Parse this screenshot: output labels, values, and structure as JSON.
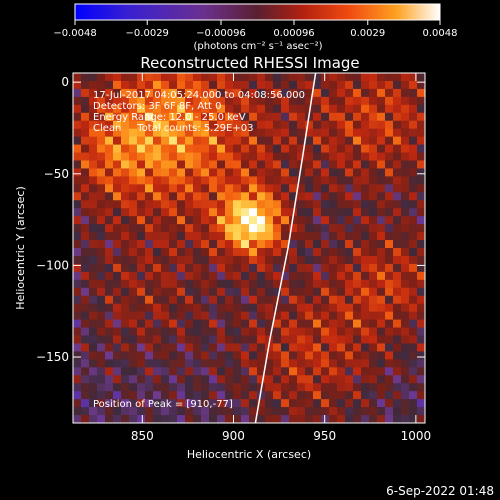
{
  "chart_data": {
    "type": "heatmap",
    "title": "Reconstructed RHESSI Image",
    "xlabel": "Heliocentric X (arcsec)",
    "ylabel": "Heliocentric Y (arcsec)",
    "xlim": [
      812,
      1005
    ],
    "ylim": [
      -186,
      5
    ],
    "x_ticks": [
      850,
      900,
      950,
      1000
    ],
    "y_ticks": [
      0,
      -50,
      -100,
      -150
    ],
    "colorbar": {
      "range": [
        -0.0048,
        0.0048
      ],
      "tick_values": [
        -0.0048,
        -0.0029,
        -0.00096,
        0.00096,
        0.0029,
        0.0048
      ],
      "tick_labels": [
        "−0.0048",
        "−0.0029",
        "−0.00096",
        "0.00096",
        "0.0029",
        "0.0048"
      ],
      "unit_label": "(photons cm⁻² s⁻¹ asec⁻²)"
    },
    "annotations": [
      "17-Jul-2017 04:05:24.000 to 04:08:56.000",
      "Detectors: 3F 6F 8F, Att 0",
      "Energy Range: 12.0 - 25.0 keV",
      "Clean     Total counts: 5.29E+03"
    ],
    "peak": {
      "x": 910,
      "y": -77,
      "label": "Position of Peak = [910,-77]"
    },
    "limb": [
      [
        945,
        5
      ],
      [
        938,
        -40
      ],
      [
        930,
        -90
      ],
      [
        920,
        -140
      ],
      [
        912,
        -186
      ]
    ],
    "emission_blobs": [
      {
        "x": 910,
        "y": -77,
        "sigma": 12,
        "value": 0.0048
      },
      {
        "x": 880,
        "y": -35,
        "sigma": 40,
        "value": 0.0022
      },
      {
        "x": 860,
        "y": -20,
        "sigma": 25,
        "value": 0.0018
      },
      {
        "x": 980,
        "y": -20,
        "sigma": 28,
        "value": 0.0022
      },
      {
        "x": 985,
        "y": -110,
        "sigma": 22,
        "value": 0.002
      },
      {
        "x": 940,
        "y": -150,
        "sigma": 28,
        "value": 0.002
      },
      {
        "x": 850,
        "y": -120,
        "sigma": 25,
        "value": 0.0012
      },
      {
        "x": 830,
        "y": -40,
        "sigma": 20,
        "value": 0.0015
      }
    ],
    "colors": {
      "scale": [
        "#0000ff",
        "#2a1fd6",
        "#552fb0",
        "#6e3a8c",
        "#3e2a3c",
        "#7a2018",
        "#c02810",
        "#f05a10",
        "#ffa020",
        "#ffe060",
        "#ffffff"
      ]
    }
  },
  "footer_timestamp": "6-Sep-2022 01:48"
}
